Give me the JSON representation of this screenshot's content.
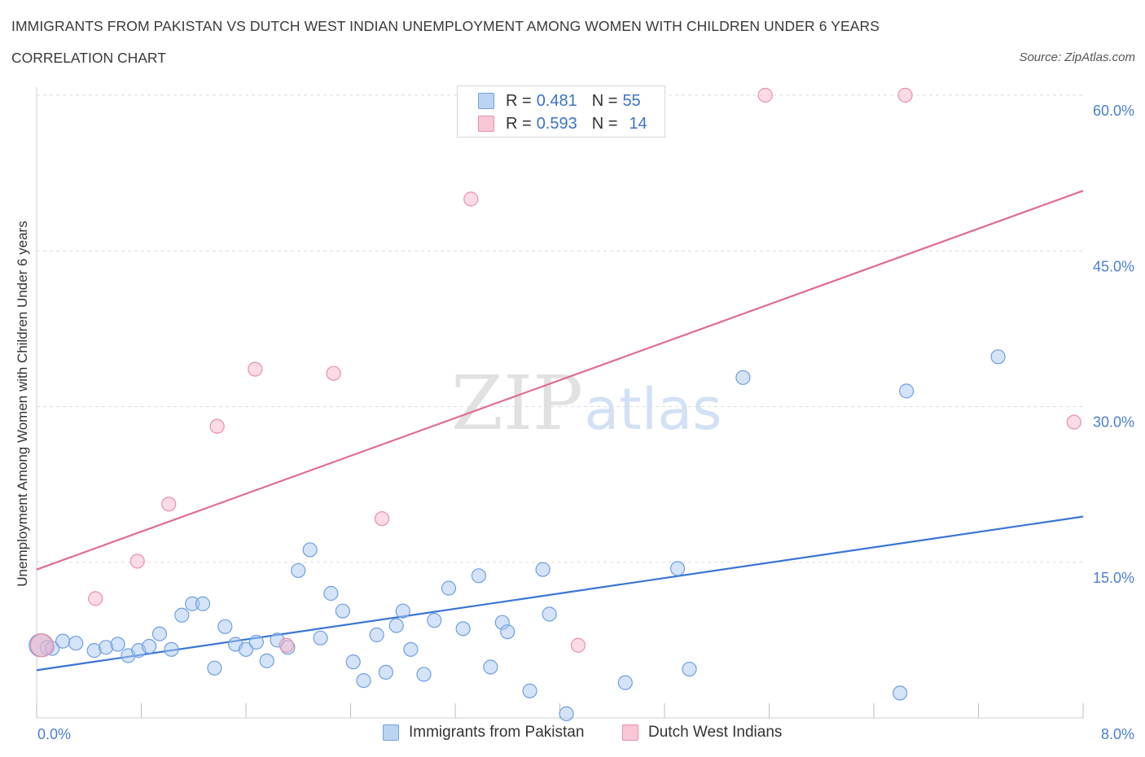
{
  "header": {
    "title": "IMMIGRANTS FROM PAKISTAN VS DUTCH WEST INDIAN UNEMPLOYMENT AMONG WOMEN WITH CHILDREN UNDER 6 YEARS",
    "subtitle": "CORRELATION CHART",
    "source": "Source: ZipAtlas.com"
  },
  "watermark": {
    "zip": "ZIP",
    "atlas": "atlas"
  },
  "legend": {
    "rows": [
      {
        "r_label": "R = ",
        "r_value": "0.481",
        "n_label": "N = ",
        "n_value": "55"
      },
      {
        "r_label": "R = ",
        "r_value": "0.593",
        "n_label": "N = ",
        "n_value": "14"
      }
    ]
  },
  "chart_data": {
    "type": "scatter",
    "title": "IMMIGRANTS FROM PAKISTAN VS DUTCH WEST INDIAN UNEMPLOYMENT AMONG WOMEN WITH CHILDREN UNDER 6 YEARS",
    "xlabel": "",
    "ylabel": "Unemployment Among Women with Children Under 6 years",
    "xlim": [
      0,
      8
    ],
    "ylim": [
      0,
      60
    ],
    "x_tick_labels": [
      "0.0%",
      "8.0%"
    ],
    "y_ticks": [
      15,
      30,
      45,
      60
    ],
    "y_tick_labels": [
      "15.0%",
      "30.0%",
      "45.0%",
      "60.0%"
    ],
    "colors": {
      "pakistan_fill": "#a9c8f0",
      "pakistan_stroke": "#6f9fe0",
      "pakistan_line": "#3b75d4",
      "dutch_fill": "#f7b8cb",
      "dutch_stroke": "#e98fab",
      "dutch_line": "#e06b92",
      "tick_label": "#4a7fd0",
      "grid": "#dcdcdc"
    },
    "series": [
      {
        "name": "Immigrants from Pakistan",
        "R": 0.481,
        "N": 55,
        "trend": {
          "x0": 0.0,
          "y0": 4.6,
          "x1": 8.0,
          "y1": 19.4
        },
        "points": [
          [
            0.03,
            7.0
          ],
          [
            0.08,
            6.8
          ],
          [
            0.12,
            6.7
          ],
          [
            0.2,
            7.4
          ],
          [
            0.3,
            7.2
          ],
          [
            0.44,
            6.5
          ],
          [
            0.53,
            6.8
          ],
          [
            0.62,
            7.1
          ],
          [
            0.7,
            6.0
          ],
          [
            0.78,
            6.5
          ],
          [
            0.86,
            6.9
          ],
          [
            0.94,
            8.1
          ],
          [
            1.03,
            6.6
          ],
          [
            1.11,
            9.9
          ],
          [
            1.19,
            11.0
          ],
          [
            1.27,
            11.0
          ],
          [
            1.36,
            4.8
          ],
          [
            1.44,
            8.8
          ],
          [
            1.52,
            7.1
          ],
          [
            1.6,
            6.6
          ],
          [
            1.68,
            7.3
          ],
          [
            1.76,
            5.5
          ],
          [
            1.84,
            7.5
          ],
          [
            1.92,
            6.8
          ],
          [
            2.0,
            14.2
          ],
          [
            2.09,
            16.2
          ],
          [
            2.17,
            7.7
          ],
          [
            2.25,
            12.0
          ],
          [
            2.34,
            10.3
          ],
          [
            2.42,
            5.4
          ],
          [
            2.5,
            3.6
          ],
          [
            2.6,
            8.0
          ],
          [
            2.67,
            4.4
          ],
          [
            2.75,
            8.9
          ],
          [
            2.8,
            10.3
          ],
          [
            2.86,
            6.6
          ],
          [
            2.96,
            4.2
          ],
          [
            3.04,
            9.4
          ],
          [
            3.15,
            12.5
          ],
          [
            3.26,
            8.6
          ],
          [
            3.38,
            13.7
          ],
          [
            3.47,
            4.9
          ],
          [
            3.56,
            9.2
          ],
          [
            3.6,
            8.3
          ],
          [
            3.77,
            2.6
          ],
          [
            3.87,
            14.3
          ],
          [
            3.92,
            10.0
          ],
          [
            4.05,
            0.4
          ],
          [
            4.5,
            3.4
          ],
          [
            4.9,
            14.4
          ],
          [
            4.99,
            4.7
          ],
          [
            5.4,
            32.8
          ],
          [
            6.65,
            31.5
          ],
          [
            6.6,
            2.4
          ],
          [
            7.35,
            34.8
          ]
        ]
      },
      {
        "name": "Dutch West Indians",
        "R": 0.593,
        "N": 14,
        "trend": {
          "x0": 0.0,
          "y0": 14.3,
          "x1": 8.0,
          "y1": 50.8
        },
        "points": [
          [
            0.04,
            7.0
          ],
          [
            0.45,
            11.5
          ],
          [
            0.77,
            15.1
          ],
          [
            1.01,
            20.6
          ],
          [
            1.38,
            28.1
          ],
          [
            1.67,
            33.6
          ],
          [
            1.91,
            7.0
          ],
          [
            2.27,
            33.2
          ],
          [
            2.64,
            19.2
          ],
          [
            3.32,
            50.0
          ],
          [
            4.14,
            7.0
          ],
          [
            5.57,
            60.0
          ],
          [
            6.64,
            60.0
          ],
          [
            7.93,
            28.5
          ]
        ]
      }
    ]
  },
  "axis": {
    "x_min_label": "0.0%",
    "x_max_label": "8.0%",
    "y_title": "Unemployment Among Women with Children Under 6 years"
  },
  "bottom_legend": {
    "items": [
      {
        "label": "Immigrants from Pakistan"
      },
      {
        "label": "Dutch West Indians"
      }
    ]
  }
}
